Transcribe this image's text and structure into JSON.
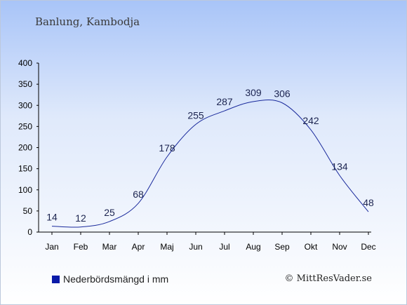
{
  "chart_data": {
    "type": "line",
    "title": "Banlung, Kambodja",
    "categories": [
      "Jan",
      "Feb",
      "Mar",
      "Apr",
      "Maj",
      "Jun",
      "Jul",
      "Aug",
      "Sep",
      "Okt",
      "Nov",
      "Dec"
    ],
    "series": [
      {
        "name": "Nederbördsmängd i mm",
        "values": [
          14,
          12,
          25,
          68,
          178,
          255,
          287,
          309,
          306,
          242,
          134,
          48
        ]
      }
    ],
    "yticks": [
      0,
      50,
      100,
      150,
      200,
      250,
      300,
      350,
      400
    ],
    "ylim": [
      0,
      400
    ],
    "grid": false,
    "legend_position": "bottom-left",
    "line_color": "#1a2a9c",
    "legend_color": "#0a1aa8"
  },
  "credit": "© MittResVader.se"
}
